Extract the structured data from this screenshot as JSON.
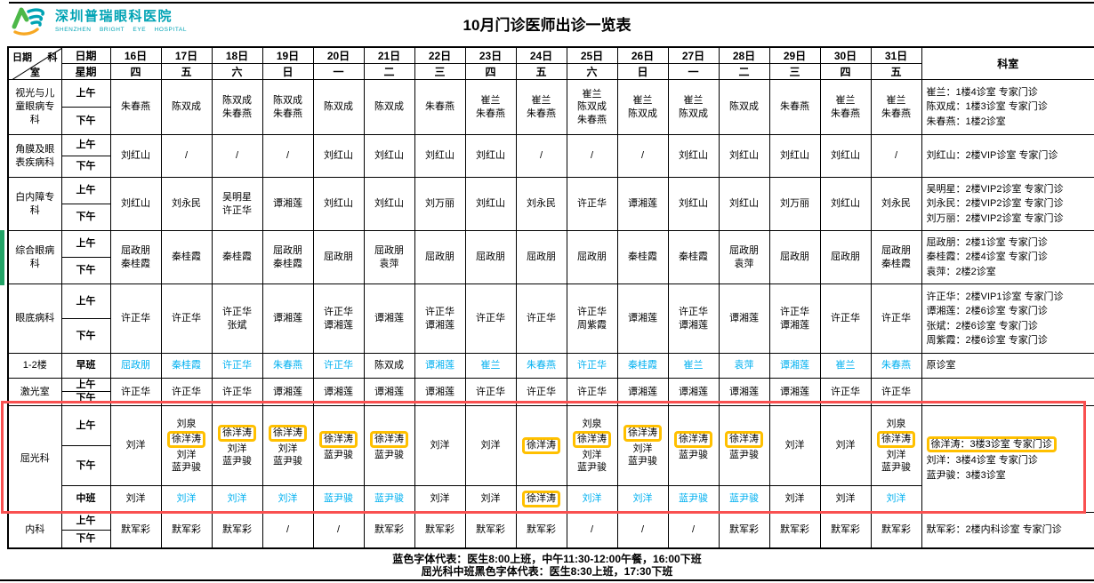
{
  "logo": {
    "cn": "深圳普瑞眼科医院",
    "en": "SHENZHEN BRIGHT EYE HOSPITAL"
  },
  "title": "10月门诊医师出诊一览表",
  "header": {
    "corner_date": "日期",
    "corner_dept1": "科",
    "corner_dept2": "室",
    "row1_label": "日期",
    "row2_label": "星期",
    "dept_col_label": "科室"
  },
  "colors": {
    "blue_text": "#00B0F0",
    "highlight_yellow": "#FFC000",
    "red_frame": "#F95050",
    "logo_teal": "#00A3B4",
    "logo_green": "#4CB848",
    "logo_orange": "#F7A823"
  },
  "dates": [
    {
      "day": "16日",
      "week": "四"
    },
    {
      "day": "17日",
      "week": "五"
    },
    {
      "day": "18日",
      "week": "六"
    },
    {
      "day": "19日",
      "week": "日"
    },
    {
      "day": "20日",
      "week": "一"
    },
    {
      "day": "21日",
      "week": "二"
    },
    {
      "day": "22日",
      "week": "三"
    },
    {
      "day": "23日",
      "week": "四"
    },
    {
      "day": "24日",
      "week": "五"
    },
    {
      "day": "25日",
      "week": "六"
    },
    {
      "day": "26日",
      "week": "日"
    },
    {
      "day": "27日",
      "week": "一"
    },
    {
      "day": "28日",
      "week": "二"
    },
    {
      "day": "29日",
      "week": "三"
    },
    {
      "day": "30日",
      "week": "四"
    },
    {
      "day": "31日",
      "week": "五"
    }
  ],
  "rows": [
    {
      "type": "merged2",
      "dept": "视光与儿童眼病专科",
      "times": [
        "上午",
        "下午"
      ],
      "cells": [
        [
          {
            "t": "朱春燕"
          }
        ],
        [
          {
            "t": "陈双成"
          }
        ],
        [
          {
            "t": "陈双成"
          },
          {
            "t": "朱春燕"
          }
        ],
        [
          {
            "t": "陈双成"
          },
          {
            "t": "朱春燕"
          }
        ],
        [
          {
            "t": "陈双成"
          }
        ],
        [
          {
            "t": "陈双成"
          }
        ],
        [
          {
            "t": "朱春燕"
          }
        ],
        [
          {
            "t": "崔兰"
          },
          {
            "t": "朱春燕"
          }
        ],
        [
          {
            "t": "崔兰"
          },
          {
            "t": "朱春燕"
          }
        ],
        [
          {
            "t": "崔兰"
          },
          {
            "t": "陈双成"
          },
          {
            "t": "朱春燕"
          }
        ],
        [
          {
            "t": "崔兰"
          },
          {
            "t": "陈双成"
          }
        ],
        [
          {
            "t": "崔兰"
          },
          {
            "t": "陈双成"
          }
        ],
        [
          {
            "t": "陈双成"
          }
        ],
        [
          {
            "t": "朱春燕"
          }
        ],
        [
          {
            "t": "崔兰"
          },
          {
            "t": "朱春燕"
          }
        ],
        [
          {
            "t": "崔兰"
          },
          {
            "t": "朱春燕"
          }
        ]
      ],
      "notes": [
        {
          "t": "崔兰：1楼4诊室 专家门诊"
        },
        {
          "t": "陈双成：1楼3诊室 专家门诊"
        },
        {
          "t": "朱春燕：1楼2诊室"
        }
      ]
    },
    {
      "type": "merged2",
      "dept": "角膜及眼表疾病科",
      "times": [
        "上午",
        "下午"
      ],
      "cells": [
        [
          {
            "t": "刘红山"
          }
        ],
        [
          {
            "t": "/"
          }
        ],
        [
          {
            "t": "/"
          }
        ],
        [
          {
            "t": "/"
          }
        ],
        [
          {
            "t": "刘红山"
          }
        ],
        [
          {
            "t": "刘红山"
          }
        ],
        [
          {
            "t": "刘红山"
          }
        ],
        [
          {
            "t": "刘红山"
          }
        ],
        [
          {
            "t": "/"
          }
        ],
        [
          {
            "t": "/"
          }
        ],
        [
          {
            "t": "/"
          }
        ],
        [
          {
            "t": "刘红山"
          }
        ],
        [
          {
            "t": "刘红山"
          }
        ],
        [
          {
            "t": "刘红山"
          }
        ],
        [
          {
            "t": "刘红山"
          }
        ],
        [
          {
            "t": "/"
          }
        ]
      ],
      "notes": [
        {
          "t": "刘红山：2楼VIP诊室 专家门诊"
        }
      ]
    },
    {
      "type": "merged2",
      "dept": "白内障专科",
      "times": [
        "上午",
        "下午"
      ],
      "cells": [
        [
          {
            "t": "刘红山"
          }
        ],
        [
          {
            "t": "刘永民"
          }
        ],
        [
          {
            "t": "吴明星"
          },
          {
            "t": "许正华"
          }
        ],
        [
          {
            "t": "谭湘莲"
          }
        ],
        [
          {
            "t": "刘红山"
          }
        ],
        [
          {
            "t": "刘红山"
          }
        ],
        [
          {
            "t": "刘万丽"
          }
        ],
        [
          {
            "t": "刘红山"
          }
        ],
        [
          {
            "t": "刘永民"
          }
        ],
        [
          {
            "t": "许正华"
          }
        ],
        [
          {
            "t": "谭湘莲"
          }
        ],
        [
          {
            "t": "刘红山"
          }
        ],
        [
          {
            "t": "刘红山"
          }
        ],
        [
          {
            "t": "刘万丽"
          }
        ],
        [
          {
            "t": "刘红山"
          }
        ],
        [
          {
            "t": "刘永民"
          }
        ]
      ],
      "notes": [
        {
          "t": "吴明星：2楼VIP2诊室 专家门诊"
        },
        {
          "t": "刘永民：2楼VIP2诊室 专家门诊"
        },
        {
          "t": "刘万丽：2楼VIP2诊室 专家门诊"
        }
      ]
    },
    {
      "type": "merged2",
      "dept": "综合眼病科",
      "times": [
        "上午",
        "下午"
      ],
      "cells": [
        [
          {
            "t": "屈政朋"
          },
          {
            "t": "秦桂霞"
          }
        ],
        [
          {
            "t": "秦桂霞"
          }
        ],
        [
          {
            "t": "秦桂霞"
          }
        ],
        [
          {
            "t": "屈政朋"
          },
          {
            "t": "秦桂霞"
          }
        ],
        [
          {
            "t": "屈政朋"
          }
        ],
        [
          {
            "t": "屈政朋"
          },
          {
            "t": "袁萍"
          }
        ],
        [
          {
            "t": "屈政朋"
          }
        ],
        [
          {
            "t": "屈政朋"
          }
        ],
        [
          {
            "t": "屈政朋"
          }
        ],
        [
          {
            "t": "屈政朋"
          }
        ],
        [
          {
            "t": "秦桂霞"
          }
        ],
        [
          {
            "t": "秦桂霞"
          }
        ],
        [
          {
            "t": "屈政朋"
          },
          {
            "t": "袁萍"
          }
        ],
        [
          {
            "t": "屈政朋"
          }
        ],
        [
          {
            "t": "屈政朋"
          }
        ],
        [
          {
            "t": "屈政朋"
          },
          {
            "t": "秦桂霞"
          }
        ]
      ],
      "notes": [
        {
          "t": "屈政朋：2楼1诊室 专家门诊"
        },
        {
          "t": "秦桂霞：2楼4诊室 专家门诊"
        },
        {
          "t": "袁萍：2楼2诊室"
        }
      ]
    },
    {
      "type": "merged2",
      "dept": "眼底病科",
      "times": [
        "上午",
        "下午"
      ],
      "cells": [
        [
          {
            "t": "许正华"
          }
        ],
        [
          {
            "t": "许正华"
          }
        ],
        [
          {
            "t": "许正华"
          },
          {
            "t": "张斌"
          }
        ],
        [
          {
            "t": "谭湘莲"
          }
        ],
        [
          {
            "t": "许正华"
          },
          {
            "t": "谭湘莲"
          }
        ],
        [
          {
            "t": "谭湘莲"
          }
        ],
        [
          {
            "t": "许正华"
          },
          {
            "t": "谭湘莲"
          }
        ],
        [
          {
            "t": "许正华"
          }
        ],
        [
          {
            "t": "许正华"
          }
        ],
        [
          {
            "t": "许正华"
          },
          {
            "t": "周紫霞"
          }
        ],
        [
          {
            "t": "谭湘莲"
          }
        ],
        [
          {
            "t": "许正华"
          },
          {
            "t": "谭湘莲"
          }
        ],
        [
          {
            "t": "谭湘莲"
          }
        ],
        [
          {
            "t": "许正华"
          },
          {
            "t": "谭湘莲"
          }
        ],
        [
          {
            "t": "许正华"
          }
        ],
        [
          {
            "t": "许正华"
          }
        ]
      ],
      "notes": [
        {
          "t": "许正华：2楼VIP1诊室 专家门诊"
        },
        {
          "t": "谭湘莲：2楼6诊室 专家门诊"
        },
        {
          "t": "张斌：2楼6诊室 专家门诊"
        },
        {
          "t": "周紫霞：2楼6诊室 专家门诊"
        }
      ]
    },
    {
      "type": "single",
      "dept": "1-2楼",
      "times": [
        "早班"
      ],
      "cells": [
        [
          {
            "t": "屈政朋",
            "blue": true
          }
        ],
        [
          {
            "t": "秦桂霞",
            "blue": true
          }
        ],
        [
          {
            "t": "许正华",
            "blue": true
          }
        ],
        [
          {
            "t": "朱春燕",
            "blue": true
          }
        ],
        [
          {
            "t": "许正华",
            "blue": true
          }
        ],
        [
          {
            "t": "陈双成"
          }
        ],
        [
          {
            "t": "谭湘莲",
            "blue": true
          }
        ],
        [
          {
            "t": "崔兰",
            "blue": true
          }
        ],
        [
          {
            "t": "朱春燕",
            "blue": true
          }
        ],
        [
          {
            "t": "许正华",
            "blue": true
          }
        ],
        [
          {
            "t": "秦桂霞",
            "blue": true
          }
        ],
        [
          {
            "t": "崔兰",
            "blue": true
          }
        ],
        [
          {
            "t": "袁萍",
            "blue": true
          }
        ],
        [
          {
            "t": "谭湘莲",
            "blue": true
          }
        ],
        [
          {
            "t": "崔兰",
            "blue": true
          }
        ],
        [
          {
            "t": "朱春燕",
            "blue": true
          }
        ]
      ],
      "notes": [
        {
          "t": "原诊室"
        }
      ]
    },
    {
      "type": "merged2",
      "dept": "激光室",
      "times": [
        "上午",
        "下午"
      ],
      "cells": [
        [
          {
            "t": "许正华"
          }
        ],
        [
          {
            "t": "许正华"
          }
        ],
        [
          {
            "t": "许正华"
          }
        ],
        [
          {
            "t": "谭湘莲"
          }
        ],
        [
          {
            "t": "谭湘莲"
          }
        ],
        [
          {
            "t": "谭湘莲"
          }
        ],
        [
          {
            "t": "谭湘莲"
          }
        ],
        [
          {
            "t": "许正华"
          }
        ],
        [
          {
            "t": "许正华"
          }
        ],
        [
          {
            "t": "许正华"
          }
        ],
        [
          {
            "t": "谭湘莲"
          }
        ],
        [
          {
            "t": "谭湘莲"
          }
        ],
        [
          {
            "t": "谭湘莲"
          }
        ],
        [
          {
            "t": "谭湘莲"
          }
        ],
        [
          {
            "t": "许正华"
          }
        ],
        [
          {
            "t": "许正华"
          }
        ]
      ],
      "notes": []
    },
    {
      "type": "triple",
      "dept": "屈光科",
      "times": [
        "上午",
        "下午",
        "中班"
      ],
      "cells": [
        [
          {
            "t": "刘洋"
          }
        ],
        [
          {
            "t": "刘泉"
          },
          {
            "t": "徐洋涛",
            "hl": true
          },
          {
            "t": "刘洋"
          },
          {
            "t": "蓝尹骏"
          }
        ],
        [
          {
            "t": "徐洋涛",
            "hl": true
          },
          {
            "t": "刘洋"
          },
          {
            "t": "蓝尹骏"
          }
        ],
        [
          {
            "t": "徐洋涛",
            "hl": true
          },
          {
            "t": "刘洋"
          },
          {
            "t": "蓝尹骏"
          }
        ],
        [
          {
            "t": "徐洋涛",
            "hl": true
          },
          {
            "t": "蓝尹骏"
          }
        ],
        [
          {
            "t": "徐洋涛",
            "hl": true
          },
          {
            "t": "蓝尹骏"
          }
        ],
        [
          {
            "t": "刘洋"
          }
        ],
        [
          {
            "t": "刘洋"
          }
        ],
        [
          {
            "t": "徐洋涛",
            "hl": true
          }
        ],
        [
          {
            "t": "刘泉"
          },
          {
            "t": "徐洋涛",
            "hl": true
          },
          {
            "t": "刘洋"
          },
          {
            "t": "蓝尹骏"
          }
        ],
        [
          {
            "t": "徐洋涛",
            "hl": true
          },
          {
            "t": "刘洋"
          },
          {
            "t": "蓝尹骏"
          }
        ],
        [
          {
            "t": "徐洋涛",
            "hl": true
          },
          {
            "t": "蓝尹骏"
          }
        ],
        [
          {
            "t": "徐洋涛",
            "hl": true
          },
          {
            "t": "蓝尹骏"
          }
        ],
        [
          {
            "t": "刘洋"
          }
        ],
        [
          {
            "t": "刘洋"
          }
        ],
        [
          {
            "t": "刘泉"
          },
          {
            "t": "徐洋涛",
            "hl": true
          },
          {
            "t": "刘洋"
          },
          {
            "t": "蓝尹骏"
          }
        ]
      ],
      "mid_cells": [
        [
          {
            "t": "刘洋"
          }
        ],
        [
          {
            "t": "刘洋",
            "blue": true
          }
        ],
        [
          {
            "t": "刘洋",
            "blue": true
          }
        ],
        [
          {
            "t": "刘洋",
            "blue": true
          }
        ],
        [
          {
            "t": "蓝尹骏",
            "blue": true
          }
        ],
        [
          {
            "t": "蓝尹骏",
            "blue": true
          }
        ],
        [
          {
            "t": "刘洋"
          }
        ],
        [
          {
            "t": "刘洋"
          }
        ],
        [
          {
            "t": "徐洋涛",
            "hl": true
          }
        ],
        [
          {
            "t": "刘洋",
            "blue": true
          }
        ],
        [
          {
            "t": "刘洋",
            "blue": true
          }
        ],
        [
          {
            "t": "蓝尹骏",
            "blue": true
          }
        ],
        [
          {
            "t": "蓝尹骏",
            "blue": true
          }
        ],
        [
          {
            "t": "刘洋"
          }
        ],
        [
          {
            "t": "刘洋"
          }
        ],
        [
          {
            "t": "刘洋",
            "blue": true
          }
        ]
      ],
      "notes": [
        {
          "t": "徐洋涛：3楼3诊室 专家门诊",
          "hl": true
        },
        {
          "t": "刘洋：3楼4诊室 专家门诊"
        },
        {
          "t": "蓝尹骏：3楼3诊室"
        }
      ]
    },
    {
      "type": "merged2",
      "dept": "内科",
      "times": [
        "上午",
        "下午"
      ],
      "cells": [
        [
          {
            "t": "默军彩"
          }
        ],
        [
          {
            "t": "默军彩"
          }
        ],
        [
          {
            "t": "默军彩"
          }
        ],
        [
          {
            "t": "/"
          }
        ],
        [
          {
            "t": "/"
          }
        ],
        [
          {
            "t": "默军彩"
          }
        ],
        [
          {
            "t": "默军彩"
          }
        ],
        [
          {
            "t": "默军彩"
          }
        ],
        [
          {
            "t": "默军彩"
          }
        ],
        [
          {
            "t": "/"
          }
        ],
        [
          {
            "t": "/"
          }
        ],
        [
          {
            "t": "/"
          }
        ],
        [
          {
            "t": "默军彩"
          }
        ],
        [
          {
            "t": "默军彩"
          }
        ],
        [
          {
            "t": "默军彩"
          }
        ],
        [
          {
            "t": "默军彩"
          }
        ]
      ],
      "notes": [
        {
          "t": "默军彩：2楼内科诊室 专家门诊"
        }
      ]
    }
  ],
  "footer": [
    "蓝色字体代表：医生8:00上班，中午11:30-12:00午餐，16:00下班",
    "屈光科中班黑色字体代表：医生8:30上班，17:30下班"
  ]
}
